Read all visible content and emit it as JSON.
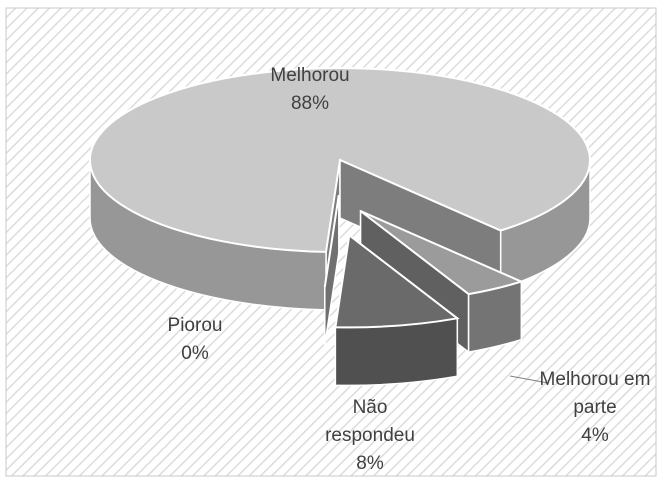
{
  "chart_data": {
    "type": "pie",
    "categories": [
      "Melhorou",
      "Melhorou em parte",
      "Não respondeu",
      "Piorou"
    ],
    "values": [
      88,
      4,
      8,
      0
    ],
    "value_labels": [
      "88%",
      "4%",
      "8%",
      "0%"
    ],
    "colors": [
      "#c9c9c9",
      "#9b9b9b",
      "#6a6a6a",
      "#b4b4b4"
    ]
  }
}
